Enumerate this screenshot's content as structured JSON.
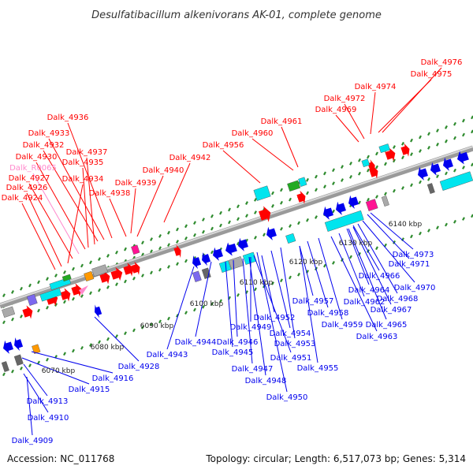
{
  "title": "Desulfatibacillum alkenivorans AK-01, complete genome",
  "footer": {
    "accession": "Accession: NC_011768",
    "summary": "Topology: circular; Length: 6,517,073 bp; Genes: 5,314"
  },
  "colors": {
    "forward": "#ff0000",
    "reverse": "#0000ee",
    "rna": "#ff88cc",
    "backbone": "#9a9a9a",
    "cyan": "#00e5ee",
    "magenta": "#ff1493",
    "orange": "#ff9900",
    "green": "#22aa22",
    "purple": "#7b68ee",
    "gray": "#aaaaaa",
    "ticks": "#2e8b2e"
  },
  "scale_ticks": [
    "6070 kbp",
    "6080 kbp",
    "6090 kbp",
    "6100 kbp",
    "6110 kbp",
    "6120 kbp",
    "6130 kbp",
    "6140 kbp"
  ],
  "labels_top": [
    "Dalk_4976",
    "Dalk_4975",
    "Dalk_4974",
    "Dalk_4972",
    "Dalk_4969",
    "Dalk_4961",
    "Dalk_4960",
    "Dalk_4956",
    "Dalk_4942",
    "Dalk_4940",
    "Dalk_4939",
    "Dalk_4938",
    "Dalk_4936",
    "Dalk_4933",
    "Dalk_4932",
    "Dalk_4937",
    "Dalk_4930",
    "Dalk_4935",
    "Dalk_R0065",
    "Dalk_4927",
    "Dalk_4934",
    "Dalk_4926",
    "Dalk_4924"
  ],
  "labels_bottom": [
    "Dalk_4973",
    "Dalk_4971",
    "Dalk_4966",
    "Dalk_4970",
    "Dalk_4964",
    "Dalk_4968",
    "Dalk_4957",
    "Dalk_4962",
    "Dalk_4967",
    "Dalk_4958",
    "Dalk_4959",
    "Dalk_4965",
    "Dalk_4963",
    "Dalk_4952",
    "Dalk_4954",
    "Dalk_4949",
    "Dalk_4953",
    "Dalk_4944",
    "Dalk_4946",
    "Dalk_4943",
    "Dalk_4945",
    "Dalk_4951",
    "Dalk_4955",
    "Dalk_4947",
    "Dalk_4928",
    "Dalk_4948",
    "Dalk_4916",
    "Dalk_4915",
    "Dalk_4950",
    "Dalk_4913",
    "Dalk_4910",
    "Dalk_4909"
  ]
}
